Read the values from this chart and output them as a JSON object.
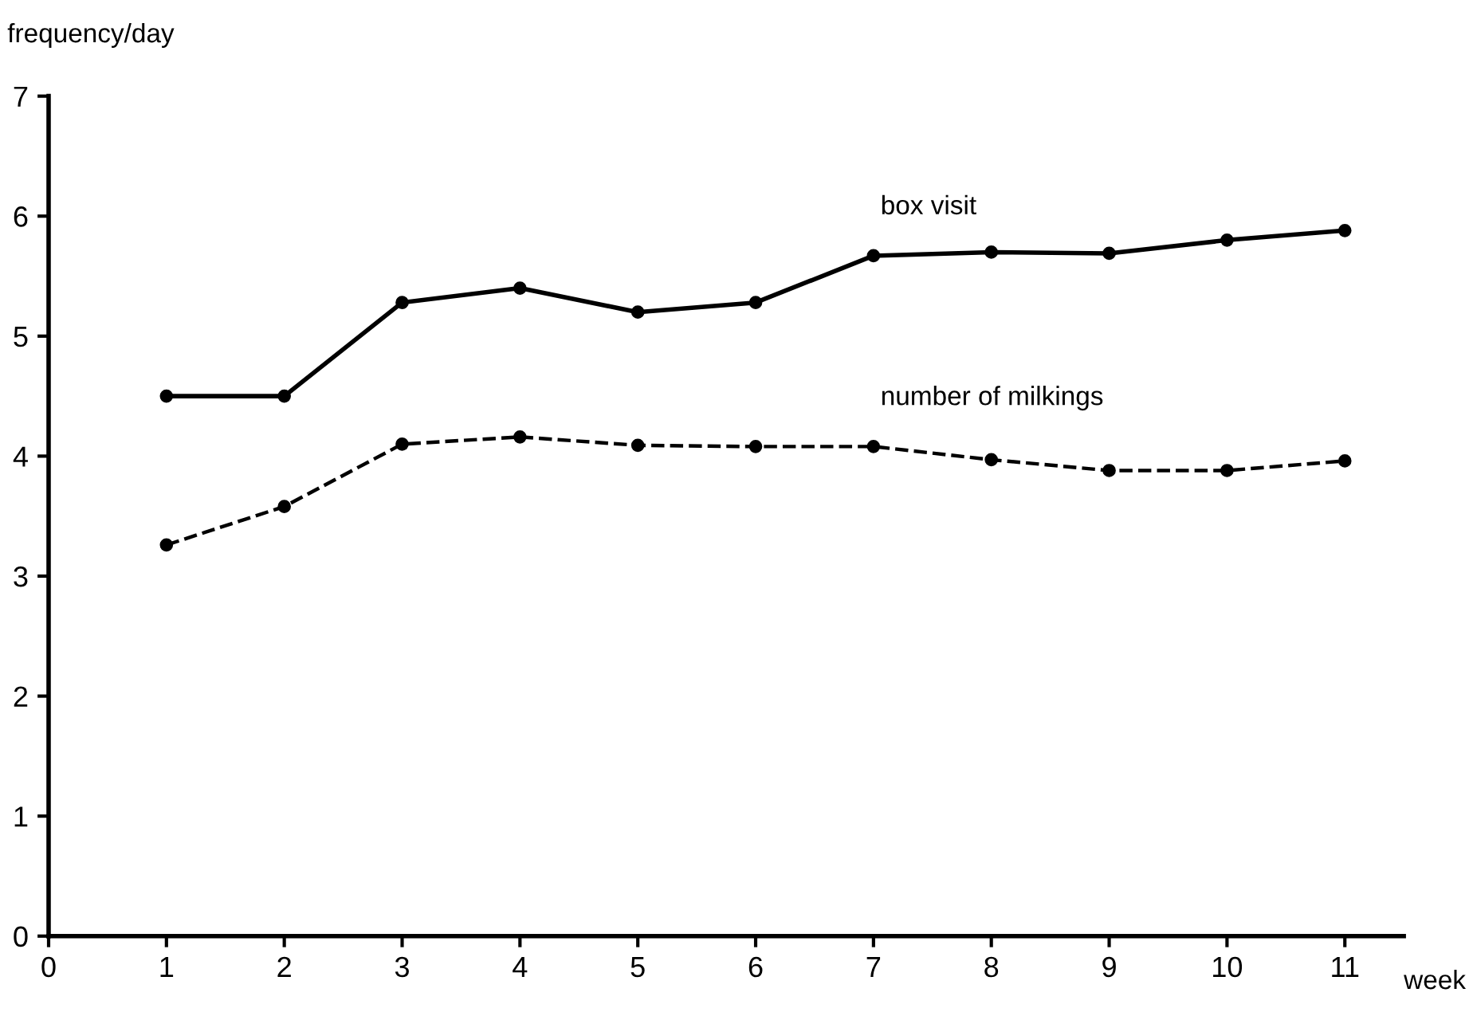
{
  "chart_data": {
    "type": "line",
    "xlabel": "week",
    "ylabel": "frequency/day",
    "x": [
      1,
      2,
      3,
      4,
      5,
      6,
      7,
      8,
      9,
      10,
      11
    ],
    "series": [
      {
        "name": "box visit",
        "color": "#000000",
        "line_style": "solid",
        "values": [
          4.5,
          4.5,
          5.28,
          5.4,
          5.2,
          5.28,
          5.67,
          5.7,
          5.69,
          5.8,
          5.88
        ]
      },
      {
        "name": "number of milkings",
        "color": "#000000",
        "line_style": "dashed",
        "values": [
          3.26,
          3.58,
          4.1,
          4.16,
          4.09,
          4.08,
          4.08,
          3.97,
          3.88,
          3.88,
          3.96
        ]
      }
    ],
    "marker": "circle",
    "xlim": [
      0,
      11.5
    ],
    "ylim": [
      0,
      7
    ],
    "xticks": [
      0,
      1,
      2,
      3,
      4,
      5,
      6,
      7,
      8,
      9,
      10,
      11
    ],
    "yticks": [
      0,
      1,
      2,
      3,
      4,
      5,
      6,
      7
    ],
    "grid": false,
    "legend": false
  }
}
